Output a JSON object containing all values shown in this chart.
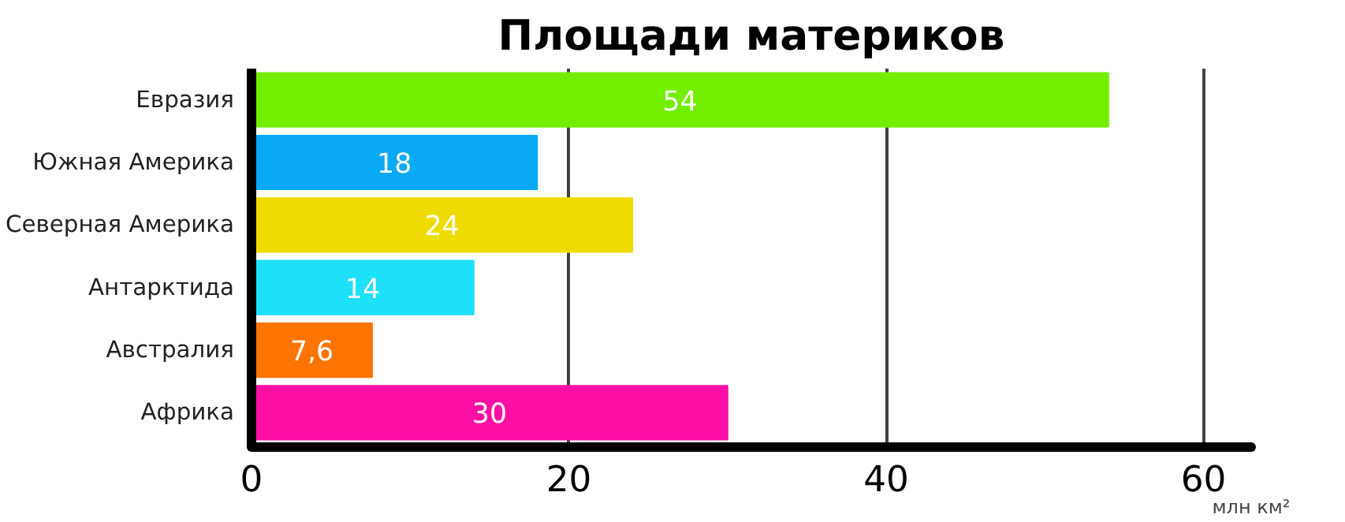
{
  "chart_data": {
    "type": "bar",
    "orientation": "horizontal",
    "title": "Площади материков",
    "xlabel": "млн км²",
    "categories": [
      "Евразия",
      "Южная Америка",
      "Северная Америка",
      "Антарктида",
      "Австралия",
      "Африка"
    ],
    "values": [
      54,
      18,
      24,
      14,
      7.6,
      30
    ],
    "colors": [
      "#73ee00",
      "#0aa9f5",
      "#eedc00",
      "#1ee0f8",
      "#fd7400",
      "#fd0fa4"
    ],
    "value_labels": [
      "54",
      "18",
      "24",
      "14",
      "7,6",
      "30"
    ],
    "xlim": [
      0,
      63
    ],
    "xticks": [
      0,
      20,
      40,
      60
    ],
    "grid": "x"
  }
}
